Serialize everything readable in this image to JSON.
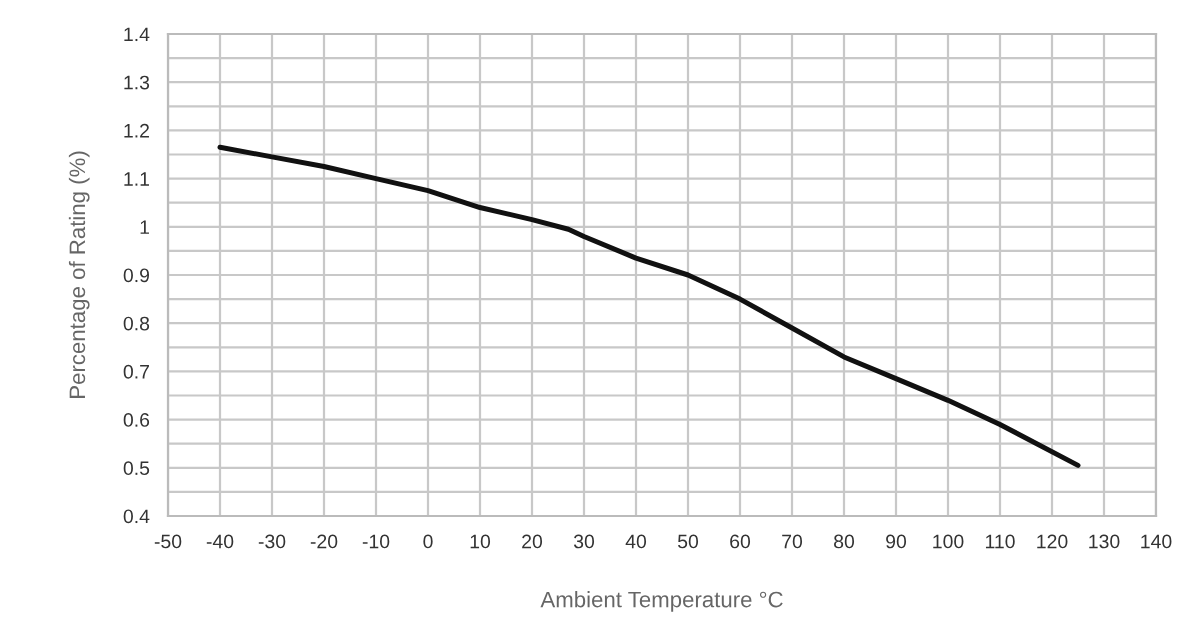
{
  "chart_data": {
    "type": "line",
    "xlabel": "Ambient Temperature °C",
    "ylabel": "Percentage of Rating (%)",
    "series": [
      {
        "color": "#111111",
        "x": [
          -40,
          -30,
          -20,
          -10,
          0,
          10,
          20,
          27,
          30,
          40,
          50,
          55,
          60,
          70,
          80,
          90,
          100,
          110,
          125
        ],
        "values": [
          1.165,
          1.145,
          1.125,
          1.1,
          1.075,
          1.04,
          1.015,
          0.995,
          0.98,
          0.935,
          0.9,
          0.875,
          0.85,
          0.79,
          0.73,
          0.685,
          0.64,
          0.59,
          0.505
        ]
      }
    ],
    "xlim": [
      -50,
      140
    ],
    "xticks": [
      -50,
      -40,
      -30,
      -20,
      -10,
      0,
      10,
      20,
      30,
      40,
      50,
      60,
      70,
      80,
      90,
      100,
      110,
      120,
      130,
      140
    ],
    "ylim": [
      0.4,
      1.4
    ],
    "yticks": [
      0.4,
      {
        "value": 0.45,
        "label": null
      },
      0.5,
      {
        "value": 0.55,
        "label": null
      },
      0.6,
      {
        "value": 0.65,
        "label": null
      },
      0.7,
      {
        "value": 0.75,
        "label": null
      },
      0.8,
      {
        "value": 0.85,
        "label": null
      },
      0.9,
      {
        "value": 0.95,
        "label": null
      },
      {
        "value": 1.0,
        "label": "1"
      },
      {
        "value": 1.05,
        "label": null
      },
      1.1,
      {
        "value": 1.15,
        "label": null
      },
      1.2,
      {
        "value": 1.25,
        "label": null
      },
      1.3,
      {
        "value": 1.35,
        "label": null
      },
      1.4
    ],
    "grid": true,
    "legend": false,
    "marker": "none",
    "line_style": "solid"
  }
}
